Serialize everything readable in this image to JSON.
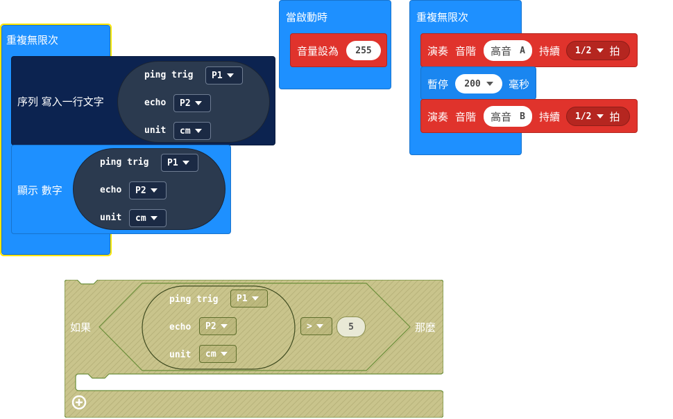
{
  "forever1": {
    "title": "重複無限次",
    "serial": {
      "label": "序列 寫入一行文字",
      "ping_label": "ping trig",
      "ping_value": "P1",
      "echo_label": "echo",
      "echo_value": "P2",
      "unit_label": "unit",
      "unit_value": "cm"
    },
    "show": {
      "label": "顯示 數字",
      "ping_label": "ping trig",
      "ping_value": "P1",
      "echo_label": "echo",
      "echo_value": "P2",
      "unit_label": "unit",
      "unit_value": "cm"
    }
  },
  "onstart": {
    "title": "當啟動時",
    "volume_label": "音量設為",
    "volume_value": "255"
  },
  "forever2": {
    "title": "重複無限次",
    "tone1": {
      "play": "演奏",
      "note": "音階",
      "note_value": "高音",
      "note_key": "A",
      "duration": "持續",
      "beat_value": "1/2",
      "beat_unit": "拍"
    },
    "pause": {
      "label": "暫停",
      "value": "200",
      "unit": "毫秒"
    },
    "tone2": {
      "play": "演奏",
      "note": "音階",
      "note_value": "高音",
      "note_key": "B",
      "duration": "持續",
      "beat_value": "1/2",
      "beat_unit": "拍"
    }
  },
  "ifblock": {
    "if_label": "如果",
    "then_label": "那麼",
    "ping_label": "ping trig",
    "ping_value": "P1",
    "echo_label": "echo",
    "echo_value": "P2",
    "unit_label": "unit",
    "unit_value": "cm",
    "operator": ">",
    "compare_value": "5",
    "add_icon": "plus-circle-icon"
  },
  "colors": {
    "loop_blue": "#1e90ff",
    "sonar_navy": "#0c2350",
    "music_red": "#e0332c",
    "disabled_olive": "#c6c28a",
    "selection_yellow": "#ffe600"
  }
}
